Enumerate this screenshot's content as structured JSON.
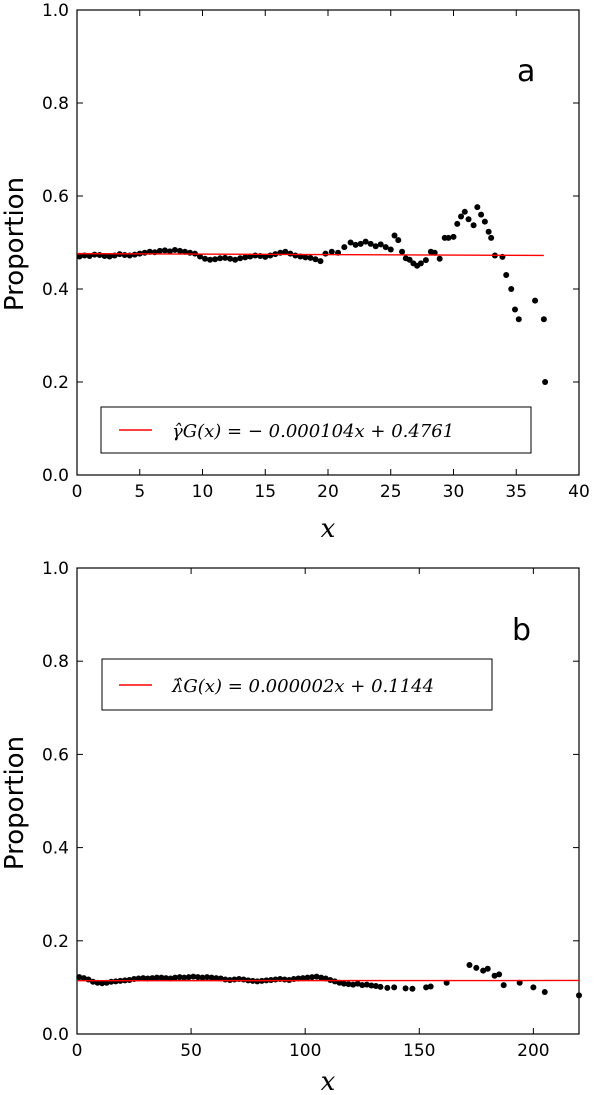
{
  "figure": {
    "panels": [
      {
        "label": "a",
        "ylabel": "Proportion",
        "xlabel": "x",
        "legend_text": "γ̂G(x) = − 0.000104x + 0.4761",
        "xticks": [
          "0",
          "5",
          "10",
          "15",
          "20",
          "25",
          "30",
          "35",
          "40"
        ],
        "yticks": [
          "0.0",
          "0.2",
          "0.4",
          "0.6",
          "0.8",
          "1.0"
        ]
      },
      {
        "label": "b",
        "ylabel": "Proportion",
        "xlabel": "x",
        "legend_text": "λ̂G(x) = 0.000002x + 0.1144",
        "xticks": [
          "0",
          "50",
          "100",
          "150",
          "200"
        ],
        "yticks": [
          "0.0",
          "0.2",
          "0.4",
          "0.6",
          "0.8",
          "1.0"
        ]
      }
    ]
  },
  "colors": {
    "fit_line": "#ff0000",
    "points": "#000000"
  },
  "chart_data": [
    {
      "type": "scatter",
      "xlim": [
        0,
        40
      ],
      "ylim": [
        0.0,
        1.0
      ],
      "grid": false,
      "legend_position": "bottom",
      "fit": {
        "slope": -0.000104,
        "intercept": 0.4761,
        "x_range": [
          0,
          37.2
        ]
      },
      "points": [
        [
          0.2,
          0.47
        ],
        [
          0.6,
          0.472
        ],
        [
          1.0,
          0.471
        ],
        [
          1.4,
          0.474
        ],
        [
          1.8,
          0.473
        ],
        [
          2.2,
          0.471
        ],
        [
          2.6,
          0.47
        ],
        [
          3.0,
          0.472
        ],
        [
          3.4,
          0.475
        ],
        [
          3.8,
          0.473
        ],
        [
          4.2,
          0.472
        ],
        [
          4.6,
          0.474
        ],
        [
          5.0,
          0.476
        ],
        [
          5.4,
          0.478
        ],
        [
          5.8,
          0.48
        ],
        [
          6.2,
          0.479
        ],
        [
          6.6,
          0.482
        ],
        [
          7.0,
          0.483
        ],
        [
          7.4,
          0.481
        ],
        [
          7.8,
          0.484
        ],
        [
          8.2,
          0.482
        ],
        [
          8.6,
          0.48
        ],
        [
          9.0,
          0.478
        ],
        [
          9.4,
          0.476
        ],
        [
          9.8,
          0.47
        ],
        [
          10.2,
          0.465
        ],
        [
          10.6,
          0.463
        ],
        [
          11.0,
          0.464
        ],
        [
          11.4,
          0.466
        ],
        [
          11.8,
          0.467
        ],
        [
          12.2,
          0.465
        ],
        [
          12.6,
          0.463
        ],
        [
          13.0,
          0.466
        ],
        [
          13.4,
          0.468
        ],
        [
          13.8,
          0.47
        ],
        [
          14.2,
          0.472
        ],
        [
          14.6,
          0.471
        ],
        [
          15.0,
          0.469
        ],
        [
          15.4,
          0.472
        ],
        [
          15.8,
          0.475
        ],
        [
          16.2,
          0.478
        ],
        [
          16.6,
          0.48
        ],
        [
          17.0,
          0.476
        ],
        [
          17.4,
          0.472
        ],
        [
          17.8,
          0.47
        ],
        [
          18.2,
          0.468
        ],
        [
          18.6,
          0.467
        ],
        [
          19.0,
          0.464
        ],
        [
          19.4,
          0.46
        ],
        [
          19.8,
          0.476
        ],
        [
          20.3,
          0.48
        ],
        [
          20.8,
          0.478
        ],
        [
          21.3,
          0.49
        ],
        [
          21.8,
          0.5
        ],
        [
          22.2,
          0.495
        ],
        [
          22.6,
          0.497
        ],
        [
          23.0,
          0.502
        ],
        [
          23.4,
          0.497
        ],
        [
          23.8,
          0.492
        ],
        [
          24.2,
          0.496
        ],
        [
          24.6,
          0.49
        ],
        [
          25.0,
          0.485
        ],
        [
          25.3,
          0.515
        ],
        [
          25.6,
          0.505
        ],
        [
          25.9,
          0.48
        ],
        [
          26.2,
          0.466
        ],
        [
          26.5,
          0.463
        ],
        [
          26.8,
          0.455
        ],
        [
          27.1,
          0.45
        ],
        [
          27.4,
          0.455
        ],
        [
          27.8,
          0.462
        ],
        [
          28.2,
          0.48
        ],
        [
          28.5,
          0.478
        ],
        [
          28.9,
          0.465
        ],
        [
          29.3,
          0.51
        ],
        [
          29.6,
          0.51
        ],
        [
          30.0,
          0.512
        ],
        [
          30.3,
          0.54
        ],
        [
          30.6,
          0.556
        ],
        [
          30.9,
          0.566
        ],
        [
          31.2,
          0.55
        ],
        [
          31.6,
          0.537
        ],
        [
          31.9,
          0.576
        ],
        [
          32.2,
          0.56
        ],
        [
          32.5,
          0.545
        ],
        [
          32.8,
          0.523
        ],
        [
          33.0,
          0.51
        ],
        [
          33.3,
          0.472
        ],
        [
          33.9,
          0.469
        ],
        [
          34.2,
          0.43
        ],
        [
          34.6,
          0.4
        ],
        [
          34.9,
          0.356
        ],
        [
          35.2,
          0.335
        ],
        [
          36.5,
          0.375
        ],
        [
          37.2,
          0.335
        ],
        [
          37.3,
          0.2
        ]
      ]
    },
    {
      "type": "scatter",
      "xlim": [
        0,
        220
      ],
      "ylim": [
        0.0,
        1.0
      ],
      "grid": false,
      "legend_position": "upper left",
      "fit": {
        "slope": 2e-06,
        "intercept": 0.1144,
        "x_range": [
          0,
          220
        ]
      },
      "points": [
        [
          1,
          0.122
        ],
        [
          3,
          0.12
        ],
        [
          5,
          0.117
        ],
        [
          7,
          0.112
        ],
        [
          9,
          0.11
        ],
        [
          11,
          0.109
        ],
        [
          13,
          0.11
        ],
        [
          15,
          0.112
        ],
        [
          17,
          0.113
        ],
        [
          19,
          0.114
        ],
        [
          21,
          0.115
        ],
        [
          23,
          0.116
        ],
        [
          25,
          0.118
        ],
        [
          27,
          0.119
        ],
        [
          29,
          0.12
        ],
        [
          31,
          0.119
        ],
        [
          33,
          0.12
        ],
        [
          35,
          0.121
        ],
        [
          37,
          0.121
        ],
        [
          39,
          0.12
        ],
        [
          41,
          0.119
        ],
        [
          43,
          0.121
        ],
        [
          45,
          0.122
        ],
        [
          47,
          0.121
        ],
        [
          49,
          0.122
        ],
        [
          51,
          0.123
        ],
        [
          53,
          0.122
        ],
        [
          55,
          0.121
        ],
        [
          57,
          0.122
        ],
        [
          59,
          0.121
        ],
        [
          61,
          0.12
        ],
        [
          63,
          0.119
        ],
        [
          65,
          0.117
        ],
        [
          67,
          0.116
        ],
        [
          69,
          0.117
        ],
        [
          71,
          0.118
        ],
        [
          73,
          0.117
        ],
        [
          75,
          0.115
        ],
        [
          77,
          0.114
        ],
        [
          79,
          0.113
        ],
        [
          81,
          0.114
        ],
        [
          83,
          0.115
        ],
        [
          85,
          0.116
        ],
        [
          87,
          0.117
        ],
        [
          89,
          0.118
        ],
        [
          91,
          0.117
        ],
        [
          93,
          0.116
        ],
        [
          95,
          0.118
        ],
        [
          97,
          0.119
        ],
        [
          99,
          0.12
        ],
        [
          101,
          0.121
        ],
        [
          103,
          0.122
        ],
        [
          105,
          0.123
        ],
        [
          107,
          0.121
        ],
        [
          109,
          0.119
        ],
        [
          111,
          0.116
        ],
        [
          113,
          0.113
        ],
        [
          115,
          0.11
        ],
        [
          117,
          0.108
        ],
        [
          119,
          0.107
        ],
        [
          121,
          0.106
        ],
        [
          123,
          0.108
        ],
        [
          125,
          0.105
        ],
        [
          127,
          0.106
        ],
        [
          129,
          0.104
        ],
        [
          131,
          0.103
        ],
        [
          133,
          0.101
        ],
        [
          136,
          0.099
        ],
        [
          139,
          0.1
        ],
        [
          144,
          0.098
        ],
        [
          147,
          0.097
        ],
        [
          153,
          0.1
        ],
        [
          155,
          0.102
        ],
        [
          162,
          0.11
        ],
        [
          172,
          0.148
        ],
        [
          175,
          0.142
        ],
        [
          178,
          0.136
        ],
        [
          180,
          0.14
        ],
        [
          183,
          0.125
        ],
        [
          185,
          0.128
        ],
        [
          187,
          0.105
        ],
        [
          194,
          0.11
        ],
        [
          200,
          0.1
        ],
        [
          205,
          0.09
        ],
        [
          220,
          0.083
        ]
      ]
    }
  ]
}
